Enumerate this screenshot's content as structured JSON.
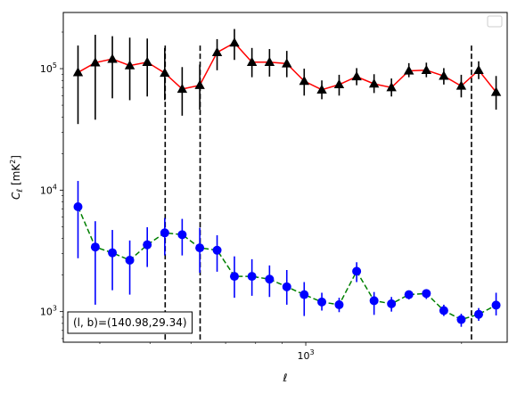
{
  "chart_data": {
    "type": "scatter",
    "xlabel": "ℓ",
    "ylabel": "C",
    "ylabel_sub": "ℓ",
    "ylabel_unit": " [mK",
    "ylabel_unit_sup": "2",
    "ylabel_unit_close": "]",
    "x_scale": "log",
    "y_scale": "log",
    "xlim": [
      340,
      2450
    ],
    "ylim": [
      560,
      290000
    ],
    "x_tick_labels": [
      {
        "value": 1000,
        "base": "10",
        "exp": "3"
      }
    ],
    "y_tick_labels": [
      {
        "value": 1000,
        "base": "10",
        "exp": "3"
      },
      {
        "value": 10000,
        "base": "10",
        "exp": "4"
      },
      {
        "value": 100000,
        "base": "10",
        "exp": "5"
      }
    ],
    "vlines": [
      535,
      625,
      2090
    ],
    "vline_range": [
      750,
      155000
    ],
    "annotation": {
      "prefix": "(l, b)=",
      "value": "(140.98,29.34)"
    },
    "legend": {
      "placement": "upper-right",
      "entries": []
    },
    "series": [
      {
        "marker": "triangle",
        "line_color": "#ff0000",
        "line_style": "solid",
        "marker_color": "#000000",
        "err_color": "#000000",
        "x": [
          363,
          392,
          423,
          457,
          494,
          534,
          577,
          624,
          674,
          728,
          787,
          851,
          919,
          993,
          1074,
          1160,
          1254,
          1355,
          1464,
          1582,
          1710,
          1848,
          1997,
          2158,
          2332
        ],
        "y": [
          93000,
          112000,
          120000,
          106000,
          113000,
          92000,
          68000,
          73000,
          136000,
          163000,
          113000,
          113000,
          110000,
          79000,
          67000,
          74000,
          86000,
          75000,
          70000,
          96000,
          97000,
          87000,
          72000,
          97000,
          64000
        ],
        "y_err_low": [
          35000,
          38000,
          57000,
          55000,
          59000,
          55000,
          41000,
          46000,
          97000,
          118000,
          85000,
          86000,
          85000,
          60000,
          56000,
          60000,
          73000,
          63000,
          59000,
          85000,
          85000,
          74000,
          58000,
          82000,
          46000
        ],
        "y_err_high": [
          155000,
          190000,
          185000,
          180000,
          177000,
          148000,
          103000,
          108000,
          175000,
          212000,
          148000,
          145000,
          140000,
          100000,
          80000,
          89000,
          101000,
          90000,
          83000,
          111000,
          112000,
          101000,
          89000,
          115000,
          87000
        ]
      },
      {
        "marker": "circle",
        "line_color": "#008000",
        "line_style": "dashed",
        "marker_color": "#0000ff",
        "err_color": "#0000ff",
        "x": [
          363,
          392,
          423,
          457,
          494,
          534,
          577,
          624,
          674,
          728,
          787,
          851,
          919,
          993,
          1074,
          1160,
          1254,
          1355,
          1464,
          1582,
          1710,
          1848,
          1997,
          2158,
          2332
        ],
        "y": [
          7300,
          3400,
          3050,
          2650,
          3550,
          4450,
          4300,
          3350,
          3200,
          1950,
          1950,
          1850,
          1600,
          1380,
          1200,
          1140,
          2150,
          1230,
          1160,
          1380,
          1410,
          1020,
          860,
          950,
          1130
        ],
        "y_err_low": [
          2750,
          1140,
          1500,
          1380,
          2330,
          2900,
          2900,
          2090,
          2130,
          1300,
          1350,
          1320,
          1140,
          920,
          1020,
          990,
          1750,
          940,
          1000,
          1260,
          1270,
          920,
          750,
          840,
          930
        ],
        "y_err_high": [
          11900,
          5550,
          4700,
          3850,
          4950,
          5900,
          5800,
          4900,
          4250,
          2850,
          2700,
          2400,
          2200,
          1750,
          1430,
          1300,
          2550,
          1450,
          1320,
          1490,
          1530,
          1140,
          960,
          1070,
          1430
        ]
      }
    ]
  }
}
